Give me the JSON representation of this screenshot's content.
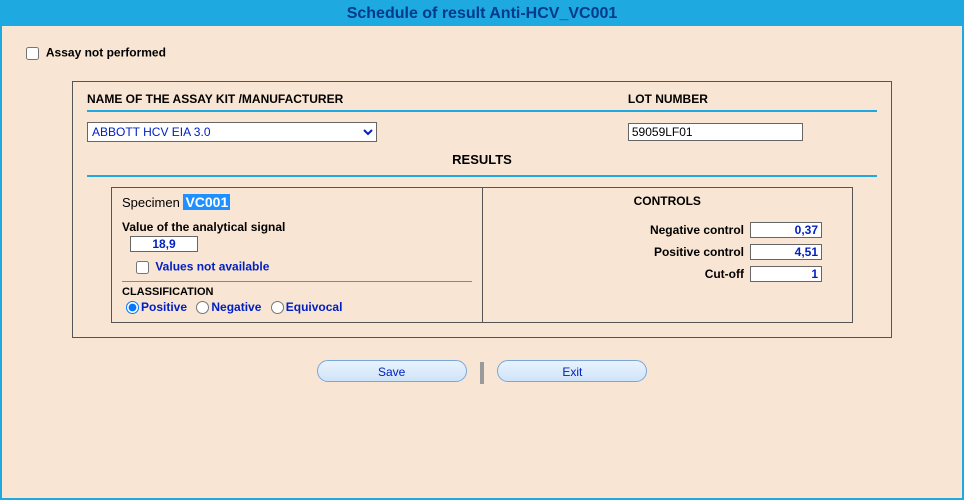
{
  "title": "Schedule of result Anti-HCV_VC001",
  "assay_not_performed": {
    "label": "Assay not performed",
    "checked": false
  },
  "headers": {
    "kit": "NAME OF THE ASSAY KIT /MANUFACTURER",
    "lot": "LOT NUMBER"
  },
  "assay_kit": {
    "selected": "ABBOTT HCV EIA 3.0"
  },
  "lot_number": "59059LF01",
  "results_heading": "RESULTS",
  "specimen": {
    "label": "Specimen",
    "id": "VC001",
    "signal_label": "Value of the analytical signal",
    "signal_value": "18,9",
    "values_na_label": "Values not available",
    "values_na_checked": false,
    "classification_label": "CLASSIFICATION",
    "options": {
      "positive": "Positive",
      "negative": "Negative",
      "equivocal": "Equivocal"
    },
    "selected": "positive"
  },
  "controls": {
    "heading": "CONTROLS",
    "negative": {
      "label": "Negative control",
      "value": "0,37"
    },
    "positive": {
      "label": "Positive control",
      "value": "4,51"
    },
    "cutoff": {
      "label": "Cut-off",
      "value": "1"
    }
  },
  "buttons": {
    "save": "Save",
    "exit": "Exit"
  },
  "colors": {
    "accent": "#1ea9e1",
    "page_bg": "#f9e5d3",
    "link_blue": "#0020c0",
    "title_text": "#003a8c"
  }
}
